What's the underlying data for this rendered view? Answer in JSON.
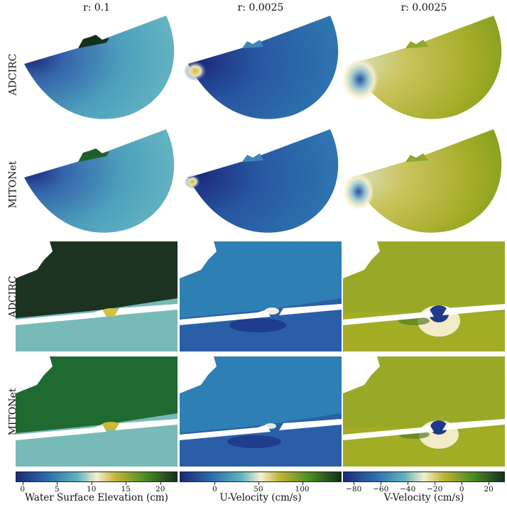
{
  "columns": [
    {
      "title": "r: 0.1",
      "colormap_label": "Water Surface Elevation (cm)",
      "ticks": [
        "0",
        "5",
        "10",
        "15",
        "20"
      ],
      "range": [
        -1,
        22.5
      ],
      "tick_values": [
        0,
        5,
        10,
        15,
        20
      ]
    },
    {
      "title": "r: 0.0025",
      "colormap_label": "U-Velocity (cm/s)",
      "ticks": [
        "0",
        "50",
        "100"
      ],
      "range": [
        -40,
        145
      ],
      "tick_values": [
        0,
        50,
        100
      ]
    },
    {
      "title": "r: 0.0025",
      "colormap_label": "V-Velocity (cm/s)",
      "ticks": [
        "−80",
        "−60",
        "−40",
        "−20",
        "0",
        "20"
      ],
      "range": [
        -88,
        32
      ],
      "tick_values": [
        -80,
        -60,
        -40,
        -20,
        0,
        20
      ]
    }
  ],
  "rows": [
    {
      "label": "ADCIRC"
    },
    {
      "label": "MITONet"
    },
    {
      "label": "ADCIRC"
    },
    {
      "label": "MITONet"
    }
  ],
  "colors": {
    "deep_blue": "#1a237e",
    "mid_blue": "#2e6fae",
    "teal": "#5fb0b8",
    "cream": "#f4ecc5",
    "olive": "#9aa51c",
    "green": "#1f6a2e",
    "dark_green": "#13301c"
  }
}
